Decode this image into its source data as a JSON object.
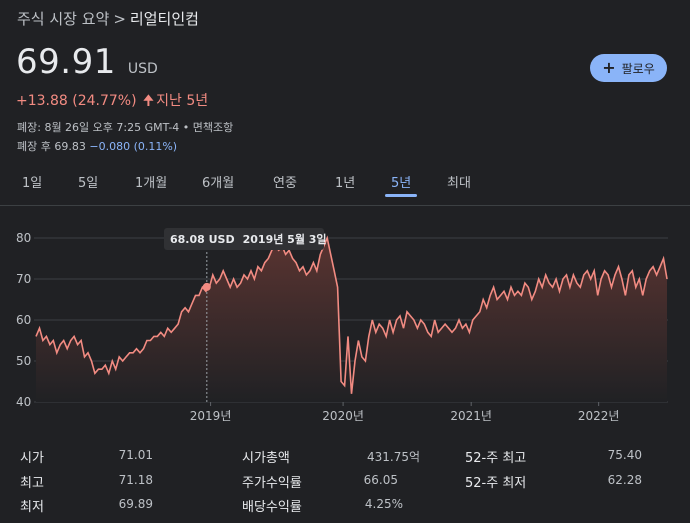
{
  "breadcrumb": {
    "parent": "주식 시장 요약",
    "separator": ">",
    "current": "리얼티인컴"
  },
  "quote": {
    "price": "69.91",
    "currency": "USD",
    "change": "+13.88 (24.77%)",
    "period": "지난 5년",
    "close_info": "폐장: 8월 26일 오후 7:25 GMT-4 • 면책조항",
    "after_hours_label": "폐장 후",
    "after_hours_price": "69.83",
    "after_hours_change": "−0.080 (0.11%)"
  },
  "follow_button": {
    "label": "팔로우"
  },
  "tabs": [
    {
      "label": "1일",
      "active": false
    },
    {
      "label": "5일",
      "active": false
    },
    {
      "label": "1개월",
      "active": false
    },
    {
      "label": "6개월",
      "active": false
    },
    {
      "label": "연중",
      "active": false
    },
    {
      "label": "1년",
      "active": false
    },
    {
      "label": "5년",
      "active": true
    },
    {
      "label": "최대",
      "active": false
    }
  ],
  "chart_data": {
    "type": "area",
    "ylim": [
      40,
      80
    ],
    "y_ticks": [
      "80",
      "70",
      "60",
      "50",
      "40"
    ],
    "x_ticks": [
      "2019년",
      "2020년",
      "2021년",
      "2022년"
    ],
    "tooltip": {
      "price": "68.08 USD",
      "date": "2019년 5월 3일",
      "value": 68.08
    },
    "colors": {
      "line": "#f28b82",
      "fill_top": "#5a3431",
      "grid": "#3c4043",
      "tooltip_bg": "#303134"
    },
    "series": [
      {
        "values": [
          56,
          58,
          55,
          56,
          54,
          55,
          52,
          54,
          55,
          53,
          55,
          56,
          54,
          55,
          51,
          52,
          50,
          47,
          48,
          48,
          49,
          47,
          50,
          48,
          51,
          50,
          51,
          52,
          52,
          53,
          52,
          53,
          55,
          55,
          56,
          56,
          57,
          56,
          58,
          57,
          58,
          59,
          62,
          63,
          62,
          64,
          66,
          66,
          68,
          67,
          68,
          71,
          69,
          70,
          72,
          70,
          68,
          70,
          68,
          69,
          71,
          70,
          72,
          70,
          73,
          72,
          74,
          75,
          77,
          78,
          77,
          78,
          76,
          77,
          75,
          74,
          72,
          73,
          71,
          72,
          74,
          72,
          76,
          78,
          80,
          76,
          72,
          68,
          45,
          44,
          56,
          42,
          50,
          55,
          51,
          50,
          56,
          60,
          57,
          59,
          58,
          56,
          60,
          57,
          60,
          61,
          58,
          62,
          61,
          60,
          58,
          60,
          59,
          57,
          56,
          60,
          57,
          58,
          59,
          58,
          57,
          58,
          60,
          58,
          59,
          57,
          60,
          61,
          62,
          65,
          63,
          66,
          68,
          65,
          66,
          67,
          65,
          68,
          66,
          67,
          66,
          69,
          68,
          65,
          67,
          70,
          68,
          71,
          69,
          68,
          70,
          67,
          70,
          71,
          68,
          71,
          69,
          68,
          71,
          72,
          70,
          72,
          66,
          70,
          72,
          71,
          68,
          71,
          73,
          70,
          66,
          71,
          72,
          68,
          70,
          66,
          70,
          72,
          73,
          71,
          73,
          75,
          70
        ]
      }
    ]
  },
  "stats": [
    {
      "label": "시가",
      "value": "71.01"
    },
    {
      "label": "최고",
      "value": "71.18"
    },
    {
      "label": "최저",
      "value": "69.89"
    },
    {
      "label": "시가총액",
      "value": "431.75억"
    },
    {
      "label": "주가수익률",
      "value": "66.05"
    },
    {
      "label": "배당수익률",
      "value": "4.25%"
    },
    {
      "label": "52-주 최고",
      "value": "75.40"
    },
    {
      "label": "52-주 최저",
      "value": "62.28"
    }
  ]
}
